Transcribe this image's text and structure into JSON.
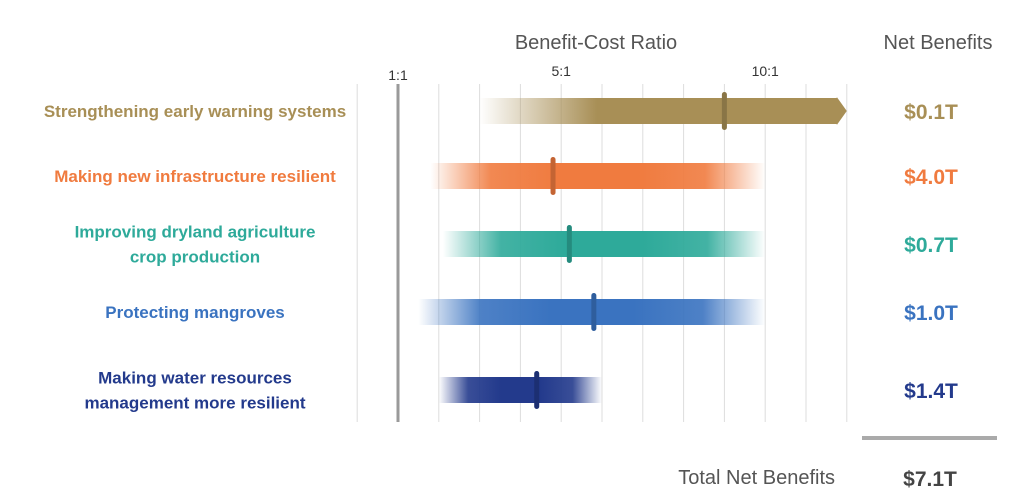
{
  "chart_data": {
    "type": "range-bar",
    "title": "Benefit-Cost Ratio",
    "right_header": "Net Benefits",
    "x_ticks": [
      {
        "value": 1,
        "label": "1:1"
      },
      {
        "value": 5,
        "label": "5:1"
      },
      {
        "value": 10,
        "label": "10:1"
      }
    ],
    "xlim": [
      0,
      12
    ],
    "grid": true,
    "categories": [
      {
        "label_lines": [
          "Strengthening early warning systems"
        ],
        "low": 3.0,
        "high": 12.0,
        "point": 9.0,
        "net_benefit": "$0.1T",
        "color": "#a88f56",
        "arrow": true
      },
      {
        "label_lines": [
          "Making new infrastructure resilient"
        ],
        "low": 1.8,
        "high": 10.0,
        "point": 4.8,
        "net_benefit": "$4.0T",
        "color": "#f07b3f",
        "arrow": false
      },
      {
        "label_lines": [
          "Improving dryland agriculture",
          "crop production"
        ],
        "low": 2.1,
        "high": 10.0,
        "point": 5.2,
        "net_benefit": "$0.7T",
        "color": "#2eaa9a",
        "arrow": false
      },
      {
        "label_lines": [
          "Protecting mangroves"
        ],
        "low": 1.5,
        "high": 10.0,
        "point": 5.8,
        "net_benefit": "$1.0T",
        "color": "#3a73c0",
        "arrow": false
      },
      {
        "label_lines": [
          "Making water resources",
          "management more resilient"
        ],
        "low": 2.0,
        "high": 6.0,
        "point": 4.4,
        "net_benefit": "$1.4T",
        "color": "#233a8c",
        "arrow": false
      }
    ],
    "total_label": "Total Net Benefits",
    "total_value": "$7.1T"
  }
}
